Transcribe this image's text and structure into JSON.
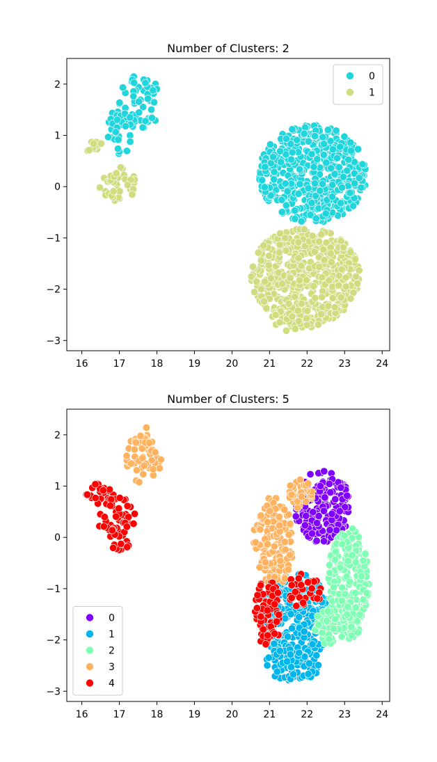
{
  "chart_data": [
    {
      "type": "scatter",
      "title": "Number of Clusters: 2",
      "xlabel": "",
      "ylabel": "",
      "xlim": [
        15.6,
        24.2
      ],
      "ylim": [
        -3.2,
        2.5
      ],
      "xticks": [
        16,
        17,
        18,
        19,
        20,
        21,
        22,
        23,
        24
      ],
      "yticks": [
        2,
        1,
        0,
        -1,
        -2,
        -3
      ],
      "ytick_labels": [
        "2",
        "1",
        "0",
        "−1",
        "−2",
        "−3"
      ],
      "legend_position": "upper right",
      "series": [
        {
          "name": "0",
          "color": "#20d5dc",
          "regions": [
            {
              "cx": 17.55,
              "cy": 1.65,
              "rx": 0.55,
              "ry": 0.55,
              "n": 55
            },
            {
              "cx": 17.0,
              "cy": 1.1,
              "rx": 0.35,
              "ry": 0.5,
              "n": 30
            },
            {
              "cx": 22.15,
              "cy": 0.25,
              "rx": 1.45,
              "ry": 0.95,
              "n": 520
            }
          ]
        },
        {
          "name": "1",
          "color": "#d1dc80",
          "regions": [
            {
              "cx": 16.3,
              "cy": 0.78,
              "rx": 0.3,
              "ry": 0.12,
              "n": 14
            },
            {
              "cx": 16.95,
              "cy": 0.05,
              "rx": 0.5,
              "ry": 0.35,
              "n": 40
            },
            {
              "cx": 21.95,
              "cy": -1.75,
              "rx": 1.45,
              "ry": 0.95,
              "n": 500
            },
            {
              "cx": 21.75,
              "cy": -2.55,
              "rx": 0.7,
              "ry": 0.3,
              "n": 60
            }
          ]
        }
      ]
    },
    {
      "type": "scatter",
      "title": "Number of Clusters: 5",
      "xlabel": "",
      "ylabel": "",
      "xlim": [
        15.6,
        24.2
      ],
      "ylim": [
        -3.2,
        2.5
      ],
      "xticks": [
        16,
        17,
        18,
        19,
        20,
        21,
        22,
        23,
        24
      ],
      "yticks": [
        2,
        1,
        0,
        -1,
        -2,
        -3
      ],
      "ytick_labels": [
        "2",
        "1",
        "0",
        "−1",
        "−2",
        "−3"
      ],
      "legend_position": "lower left",
      "series": [
        {
          "name": "0",
          "color": "#8000ff",
          "regions": [
            {
              "cx": 22.4,
              "cy": 0.6,
              "rx": 0.75,
              "ry": 0.7,
              "n": 200
            }
          ]
        },
        {
          "name": "1",
          "color": "#00b5eb",
          "regions": [
            {
              "cx": 21.7,
              "cy": -1.55,
              "rx": 0.95,
              "ry": 0.85,
              "n": 260
            },
            {
              "cx": 21.65,
              "cy": -2.45,
              "rx": 0.75,
              "ry": 0.35,
              "n": 80
            }
          ]
        },
        {
          "name": "2",
          "color": "#80ffb4",
          "regions": [
            {
              "cx": 23.1,
              "cy": -0.9,
              "rx": 0.55,
              "ry": 1.1,
              "n": 230
            },
            {
              "cx": 22.55,
              "cy": -1.75,
              "rx": 0.4,
              "ry": 0.35,
              "n": 40
            }
          ]
        },
        {
          "name": "3",
          "color": "#ffb360",
          "regions": [
            {
              "cx": 17.65,
              "cy": 1.6,
              "rx": 0.5,
              "ry": 0.55,
              "n": 60
            },
            {
              "cx": 21.1,
              "cy": -0.1,
              "rx": 0.55,
              "ry": 0.9,
              "n": 150
            },
            {
              "cx": 21.8,
              "cy": 0.85,
              "rx": 0.35,
              "ry": 0.3,
              "n": 40
            }
          ]
        },
        {
          "name": "4",
          "color": "#ff0000",
          "regions": [
            {
              "cx": 16.45,
              "cy": 0.85,
              "rx": 0.4,
              "ry": 0.2,
              "n": 25
            },
            {
              "cx": 16.95,
              "cy": 0.25,
              "rx": 0.5,
              "ry": 0.55,
              "n": 60
            },
            {
              "cx": 20.95,
              "cy": -1.5,
              "rx": 0.35,
              "ry": 0.7,
              "n": 70
            },
            {
              "cx": 21.9,
              "cy": -1.05,
              "rx": 0.5,
              "ry": 0.35,
              "n": 30
            }
          ]
        }
      ]
    }
  ]
}
